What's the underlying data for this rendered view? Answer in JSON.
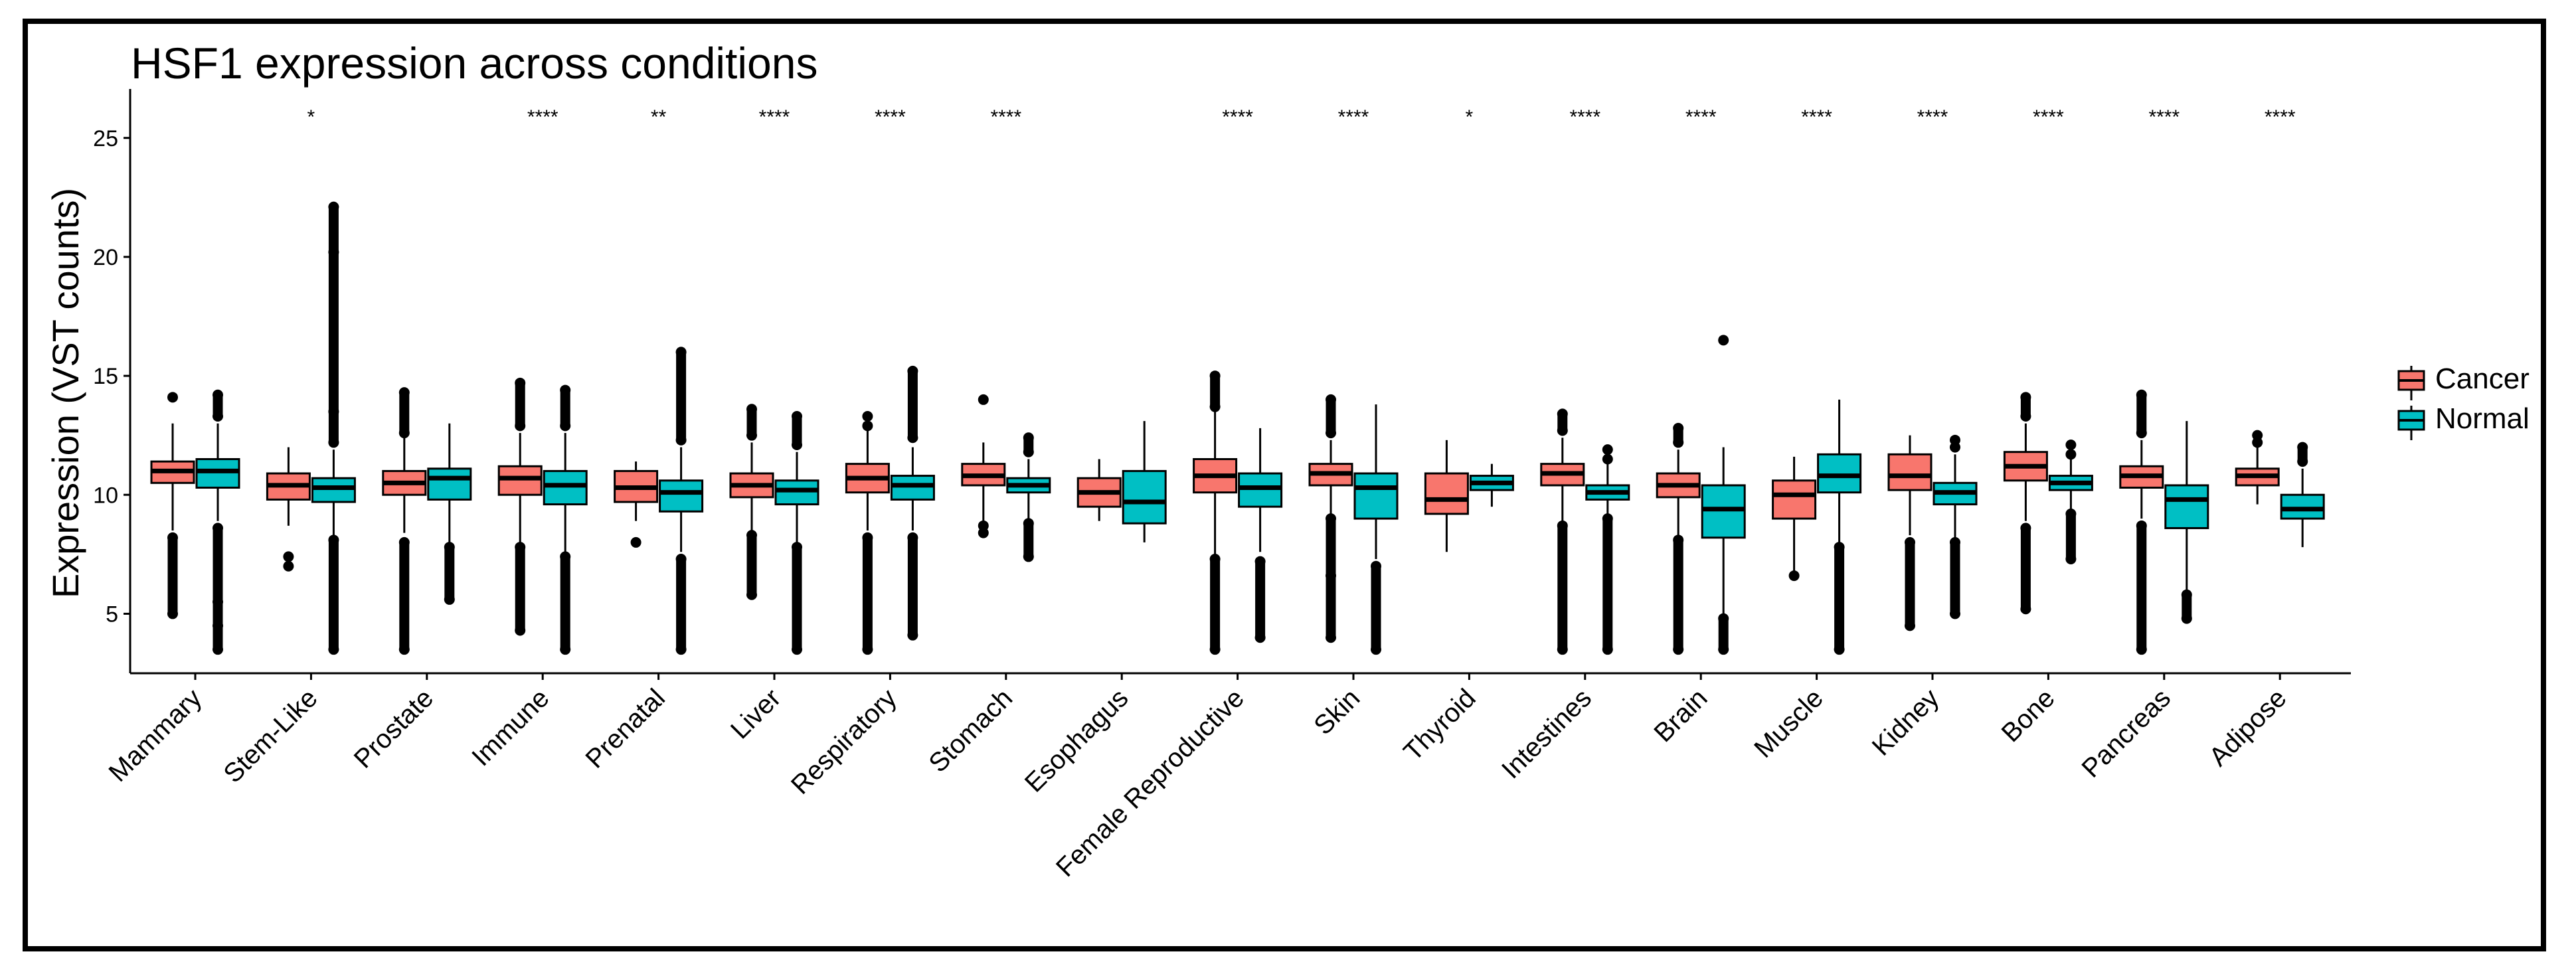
{
  "chart_data": {
    "type": "boxplot",
    "title": "HSF1 expression across conditions",
    "xlabel": "",
    "ylabel": "Expression (VST counts)",
    "ylim": [
      2.5,
      26.5
    ],
    "yticks": [
      5,
      10,
      15,
      20,
      25
    ],
    "grid": false,
    "legend": {
      "position": "right",
      "entries": [
        "Cancer",
        "Normal"
      ]
    },
    "colors": {
      "Cancer": "#F8766D",
      "Normal": "#00BFC4"
    },
    "categories": [
      "Mammary",
      "Stem-Like",
      "Prostate",
      "Immune",
      "Prenatal",
      "Liver",
      "Respiratory",
      "Stomach",
      "Esophagus",
      "Female Reproductive",
      "Skin",
      "Thyroid",
      "Intestines",
      "Brain",
      "Muscle",
      "Kidney",
      "Bone",
      "Pancreas",
      "Adipose"
    ],
    "significance": [
      "",
      "*",
      "",
      "****",
      "**",
      "****",
      "****",
      "****",
      "",
      "****",
      "****",
      "*",
      "****",
      "****",
      "****",
      "****",
      "****",
      "****",
      "****"
    ],
    "series": [
      {
        "name": "Cancer",
        "boxes": [
          {
            "whisker_low": 8.5,
            "q1": 10.5,
            "median": 11.0,
            "q3": 11.4,
            "whisker_high": 13.0,
            "outliers_low": [
              5.0,
              8.2
            ],
            "outliers_high": [
              14.1
            ]
          },
          {
            "whisker_low": 8.7,
            "q1": 9.8,
            "median": 10.4,
            "q3": 10.9,
            "whisker_high": 12.0,
            "outliers_low": [
              7.0,
              7.4
            ],
            "outliers_high": []
          },
          {
            "whisker_low": 8.4,
            "q1": 10.0,
            "median": 10.5,
            "q3": 11.0,
            "whisker_high": 12.4,
            "outliers_low": [
              3.5,
              8.0
            ],
            "outliers_high": [
              12.6,
              14.3
            ]
          },
          {
            "whisker_low": 8.0,
            "q1": 10.0,
            "median": 10.7,
            "q3": 11.2,
            "whisker_high": 12.6,
            "outliers_low": [
              4.3,
              7.8
            ],
            "outliers_high": [
              12.9,
              14.7
            ]
          },
          {
            "whisker_low": 8.9,
            "q1": 9.7,
            "median": 10.3,
            "q3": 11.0,
            "whisker_high": 11.4,
            "outliers_low": [
              8.0
            ],
            "outliers_high": []
          },
          {
            "whisker_low": 8.4,
            "q1": 9.9,
            "median": 10.4,
            "q3": 10.9,
            "whisker_high": 12.2,
            "outliers_low": [
              5.8,
              8.3
            ],
            "outliers_high": [
              12.5,
              13.6
            ]
          },
          {
            "whisker_low": 8.5,
            "q1": 10.1,
            "median": 10.7,
            "q3": 11.3,
            "whisker_high": 12.7,
            "outliers_low": [
              3.5,
              8.2
            ],
            "outliers_high": [
              12.9,
              13.3
            ]
          },
          {
            "whisker_low": 8.8,
            "q1": 10.4,
            "median": 10.8,
            "q3": 11.3,
            "whisker_high": 12.2,
            "outliers_low": [
              8.4,
              8.7
            ],
            "outliers_high": [
              14.0
            ]
          },
          {
            "whisker_low": 8.9,
            "q1": 9.5,
            "median": 10.1,
            "q3": 10.7,
            "whisker_high": 11.5,
            "outliers_low": [],
            "outliers_high": []
          },
          {
            "whisker_low": 7.5,
            "q1": 10.1,
            "median": 10.8,
            "q3": 11.5,
            "whisker_high": 13.5,
            "outliers_low": [
              3.5,
              7.3
            ],
            "outliers_high": [
              13.7,
              15.0
            ]
          },
          {
            "whisker_low": 9.1,
            "q1": 10.4,
            "median": 10.9,
            "q3": 11.3,
            "whisker_high": 12.3,
            "outliers_low": [
              4.0,
              6.6,
              9.0
            ],
            "outliers_high": [
              12.6,
              14.0
            ]
          },
          {
            "whisker_low": 7.6,
            "q1": 9.2,
            "median": 9.8,
            "q3": 10.9,
            "whisker_high": 12.3,
            "outliers_low": [],
            "outliers_high": []
          },
          {
            "whisker_low": 8.9,
            "q1": 10.4,
            "median": 10.9,
            "q3": 11.3,
            "whisker_high": 12.4,
            "outliers_low": [
              3.5,
              8.7
            ],
            "outliers_high": [
              12.7,
              13.4
            ]
          },
          {
            "whisker_low": 8.3,
            "q1": 9.9,
            "median": 10.4,
            "q3": 10.9,
            "whisker_high": 11.9,
            "outliers_low": [
              3.5,
              8.1
            ],
            "outliers_high": [
              12.2,
              12.8
            ]
          },
          {
            "whisker_low": 6.8,
            "q1": 9.0,
            "median": 10.0,
            "q3": 10.6,
            "whisker_high": 11.6,
            "outliers_low": [
              6.6
            ],
            "outliers_high": []
          },
          {
            "whisker_low": 8.3,
            "q1": 10.2,
            "median": 10.8,
            "q3": 11.7,
            "whisker_high": 12.5,
            "outliers_low": [
              4.5,
              8.0
            ],
            "outliers_high": []
          },
          {
            "whisker_low": 8.9,
            "q1": 10.6,
            "median": 11.2,
            "q3": 11.8,
            "whisker_high": 13.0,
            "outliers_low": [
              5.2,
              8.6
            ],
            "outliers_high": [
              13.3,
              14.1
            ]
          },
          {
            "whisker_low": 9.0,
            "q1": 10.3,
            "median": 10.8,
            "q3": 11.2,
            "whisker_high": 12.3,
            "outliers_low": [
              3.5,
              8.7
            ],
            "outliers_high": [
              12.6,
              14.2
            ]
          },
          {
            "whisker_low": 9.6,
            "q1": 10.4,
            "median": 10.8,
            "q3": 11.1,
            "whisker_high": 12.0,
            "outliers_low": [],
            "outliers_high": [
              12.2,
              12.5
            ]
          }
        ]
      },
      {
        "name": "Normal",
        "boxes": [
          {
            "whisker_low": 8.9,
            "q1": 10.3,
            "median": 11.0,
            "q3": 11.5,
            "whisker_high": 13.0,
            "outliers_low": [
              3.5,
              4.5,
              5.5,
              8.6
            ],
            "outliers_high": [
              13.3,
              14.2
            ]
          },
          {
            "whisker_low": 8.3,
            "q1": 9.7,
            "median": 10.3,
            "q3": 10.7,
            "whisker_high": 11.9,
            "outliers_low": [
              3.5,
              8.1
            ],
            "outliers_high": [
              12.2,
              13.5,
              20.2,
              22.1
            ]
          },
          {
            "whisker_low": 8.0,
            "q1": 9.8,
            "median": 10.7,
            "q3": 11.1,
            "whisker_high": 13.0,
            "outliers_low": [
              5.6,
              7.8
            ],
            "outliers_high": []
          },
          {
            "whisker_low": 7.6,
            "q1": 9.6,
            "median": 10.4,
            "q3": 11.0,
            "whisker_high": 12.6,
            "outliers_low": [
              3.5,
              7.4
            ],
            "outliers_high": [
              12.9,
              14.4
            ]
          },
          {
            "whisker_low": 7.6,
            "q1": 9.3,
            "median": 10.1,
            "q3": 10.6,
            "whisker_high": 12.0,
            "outliers_low": [
              3.5,
              7.3
            ],
            "outliers_high": [
              12.3,
              16.0
            ]
          },
          {
            "whisker_low": 8.0,
            "q1": 9.6,
            "median": 10.2,
            "q3": 10.6,
            "whisker_high": 11.8,
            "outliers_low": [
              3.5,
              7.8
            ],
            "outliers_high": [
              12.1,
              13.3
            ]
          },
          {
            "whisker_low": 8.5,
            "q1": 9.8,
            "median": 10.4,
            "q3": 10.8,
            "whisker_high": 12.0,
            "outliers_low": [
              4.1,
              8.2
            ],
            "outliers_high": [
              12.4,
              15.2
            ]
          },
          {
            "whisker_low": 9.0,
            "q1": 10.1,
            "median": 10.4,
            "q3": 10.7,
            "whisker_high": 11.5,
            "outliers_low": [
              7.4,
              8.8
            ],
            "outliers_high": [
              11.8,
              12.4
            ]
          },
          {
            "whisker_low": 8.0,
            "q1": 8.8,
            "median": 9.7,
            "q3": 11.0,
            "whisker_high": 13.1,
            "outliers_low": [],
            "outliers_high": []
          },
          {
            "whisker_low": 7.6,
            "q1": 9.5,
            "median": 10.3,
            "q3": 10.9,
            "whisker_high": 12.8,
            "outliers_low": [
              4.0,
              7.2
            ],
            "outliers_high": []
          },
          {
            "whisker_low": 7.3,
            "q1": 9.0,
            "median": 10.3,
            "q3": 10.9,
            "whisker_high": 13.8,
            "outliers_low": [
              3.5,
              7.0
            ],
            "outliers_high": []
          },
          {
            "whisker_low": 9.5,
            "q1": 10.2,
            "median": 10.5,
            "q3": 10.8,
            "whisker_high": 11.3,
            "outliers_low": [],
            "outliers_high": []
          },
          {
            "whisker_low": 9.1,
            "q1": 9.8,
            "median": 10.1,
            "q3": 10.4,
            "whisker_high": 11.3,
            "outliers_low": [
              3.5,
              9.0
            ],
            "outliers_high": [
              11.5,
              11.9
            ]
          },
          {
            "whisker_low": 5.0,
            "q1": 8.2,
            "median": 9.4,
            "q3": 10.4,
            "whisker_high": 12.0,
            "outliers_low": [
              3.5,
              4.8
            ],
            "outliers_high": [
              16.5
            ]
          },
          {
            "whisker_low": 8.0,
            "q1": 10.1,
            "median": 10.8,
            "q3": 11.7,
            "whisker_high": 14.0,
            "outliers_low": [
              3.5,
              7.8
            ],
            "outliers_high": []
          },
          {
            "whisker_low": 8.2,
            "q1": 9.6,
            "median": 10.1,
            "q3": 10.5,
            "whisker_high": 11.7,
            "outliers_low": [
              5.0,
              8.0
            ],
            "outliers_high": [
              12.0,
              12.3
            ]
          },
          {
            "whisker_low": 9.4,
            "q1": 10.2,
            "median": 10.5,
            "q3": 10.8,
            "whisker_high": 11.5,
            "outliers_low": [
              7.3,
              9.2
            ],
            "outliers_high": [
              11.7,
              12.1
            ]
          },
          {
            "whisker_low": 6.0,
            "q1": 8.6,
            "median": 9.8,
            "q3": 10.4,
            "whisker_high": 13.1,
            "outliers_low": [
              4.8,
              5.8
            ],
            "outliers_high": []
          },
          {
            "whisker_low": 7.8,
            "q1": 9.0,
            "median": 9.4,
            "q3": 10.0,
            "whisker_high": 11.1,
            "outliers_low": [],
            "outliers_high": [
              11.4,
              12.0
            ]
          }
        ]
      }
    ]
  }
}
